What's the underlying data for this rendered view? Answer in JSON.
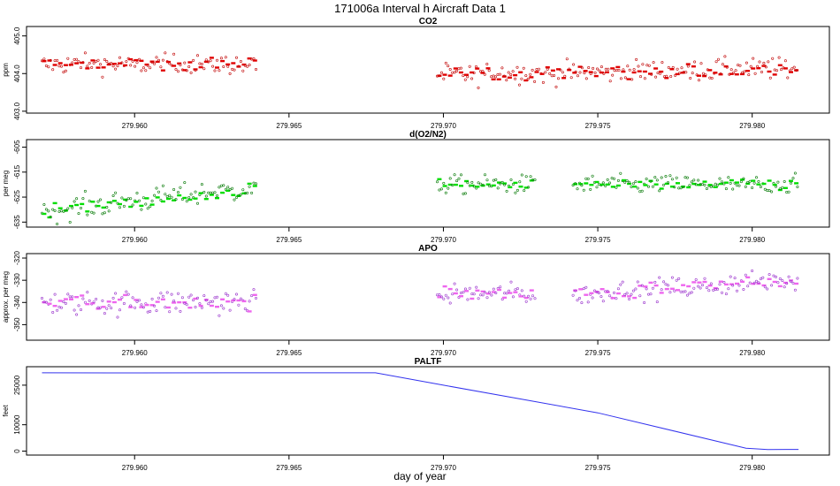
{
  "figure_title": "171006a   Interval h Aircraft Data 1",
  "x_axis_title": "day of year",
  "chart_data": [
    {
      "type": "scatter",
      "title": "CO2",
      "ylabel": "ppm",
      "color": "#e00000",
      "point_color": "#c00000",
      "xlim": [
        279.9565,
        279.9825
      ],
      "ylim": [
        402.95,
        405.25
      ],
      "x_ticks": [
        279.96,
        279.965,
        279.97,
        279.975,
        279.98
      ],
      "x_tick_labels": [
        "279.960",
        "279.965",
        "279.970",
        "279.975",
        "279.980"
      ],
      "y_ticks": [
        403.0,
        404.0,
        405.0
      ],
      "y_tick_labels": [
        "403.0",
        "404.0",
        "405.0"
      ],
      "segments": [
        {
          "x_start": 279.957,
          "x_end": 279.964,
          "mean": 404.25,
          "spread": 0.25,
          "trend": 0.0
        },
        {
          "x_start": 279.9698,
          "x_end": 279.9815,
          "mean": 404.05,
          "spread": 0.28,
          "trend": 0.55
        }
      ]
    },
    {
      "type": "scatter",
      "title": "d(O2/N2)",
      "ylabel": "per meg",
      "color": "#00dd00",
      "point_color": "#007700",
      "xlim": [
        279.9565,
        279.9825
      ],
      "ylim": [
        -637,
        -602
      ],
      "x_ticks": [
        279.96,
        279.965,
        279.97,
        279.975,
        279.98
      ],
      "x_tick_labels": [
        "279.960",
        "279.965",
        "279.970",
        "279.975",
        "279.980"
      ],
      "y_ticks": [
        -635,
        -625,
        -615,
        -605
      ],
      "y_tick_labels": [
        "-635",
        "-625",
        "-615",
        "-605"
      ],
      "segments": [
        {
          "x_start": 279.957,
          "x_end": 279.964,
          "mean": -626,
          "spread": 4.5,
          "trend": 2.0
        },
        {
          "x_start": 279.9698,
          "x_end": 279.973,
          "mean": -620,
          "spread": 3.5,
          "trend": 0.0
        },
        {
          "x_start": 279.9742,
          "x_end": 279.9815,
          "mean": -620,
          "spread": 3.5,
          "trend": 0.0
        }
      ]
    },
    {
      "type": "scatter",
      "title": "APO",
      "ylabel": "approx. per meg",
      "color": "#ee66ee",
      "point_color": "#9933cc",
      "xlim": [
        279.9565,
        279.9825
      ],
      "ylim": [
        -357,
        -318
      ],
      "x_ticks": [
        279.96,
        279.965,
        279.97,
        279.975,
        279.98
      ],
      "x_tick_labels": [
        "279.960",
        "279.965",
        "279.970",
        "279.975",
        "279.980"
      ],
      "y_ticks": [
        -350,
        -340,
        -330,
        -320
      ],
      "y_tick_labels": [
        "-350",
        "-340",
        "-330",
        "-320"
      ],
      "segments": [
        {
          "x_start": 279.957,
          "x_end": 279.964,
          "mean": -340,
          "spread": 5.5,
          "trend": 0.0
        },
        {
          "x_start": 279.9698,
          "x_end": 279.973,
          "mean": -336,
          "spread": 4.5,
          "trend": 0.0
        },
        {
          "x_start": 279.9742,
          "x_end": 279.9815,
          "mean": -333,
          "spread": 4.5,
          "trend": 1.5
        }
      ]
    },
    {
      "type": "line",
      "title": "PALTF",
      "ylabel": "feet",
      "color": "#3333ee",
      "xlim": [
        279.9565,
        279.9825
      ],
      "ylim": [
        -1500,
        32000
      ],
      "x_ticks": [
        279.96,
        279.965,
        279.97,
        279.975,
        279.98
      ],
      "x_tick_labels": [
        "279.960",
        "279.965",
        "279.970",
        "279.975",
        "279.980"
      ],
      "y_ticks": [
        0,
        10000,
        25000
      ],
      "y_tick_labels": [
        "0",
        "10000",
        "25000"
      ],
      "x": [
        279.957,
        279.96,
        279.964,
        279.9678,
        279.97,
        279.975,
        279.9798,
        279.9805,
        279.9815
      ],
      "values": [
        29700,
        29650,
        29700,
        29700,
        25000,
        14500,
        1100,
        600,
        650
      ]
    }
  ]
}
